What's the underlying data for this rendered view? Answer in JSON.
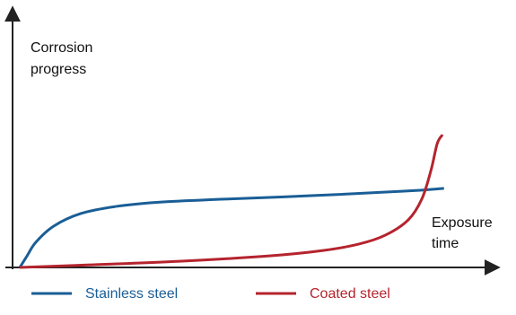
{
  "chart_data": {
    "type": "line",
    "ylabel": [
      "Corrosion",
      "progress"
    ],
    "xlabel": [
      "Exposure",
      "time"
    ],
    "xlim": [
      0,
      100
    ],
    "ylim": [
      0,
      100
    ],
    "series": [
      {
        "name": "Stainless steel",
        "color": "#1a5e96",
        "x": [
          1.5,
          3,
          4.8,
          8.5,
          14.1,
          21.5,
          30.8,
          43.8,
          62.3,
          80.9,
          89.2
        ],
        "values": [
          0,
          4.5,
          9.8,
          16.1,
          21,
          23.8,
          25.5,
          26.6,
          28,
          29.7,
          30.8
        ]
      },
      {
        "name": "Coated steel",
        "color": "#b5242e",
        "x": [
          1.5,
          16,
          34.5,
          53.1,
          64.2,
          71.6,
          77.1,
          81.8,
          84.6,
          86.5,
          87.8,
          88.9
        ],
        "values": [
          0,
          1,
          2.4,
          4.5,
          6.6,
          9.1,
          12.6,
          18.5,
          26.6,
          37.8,
          48.3,
          51.7
        ]
      }
    ]
  }
}
